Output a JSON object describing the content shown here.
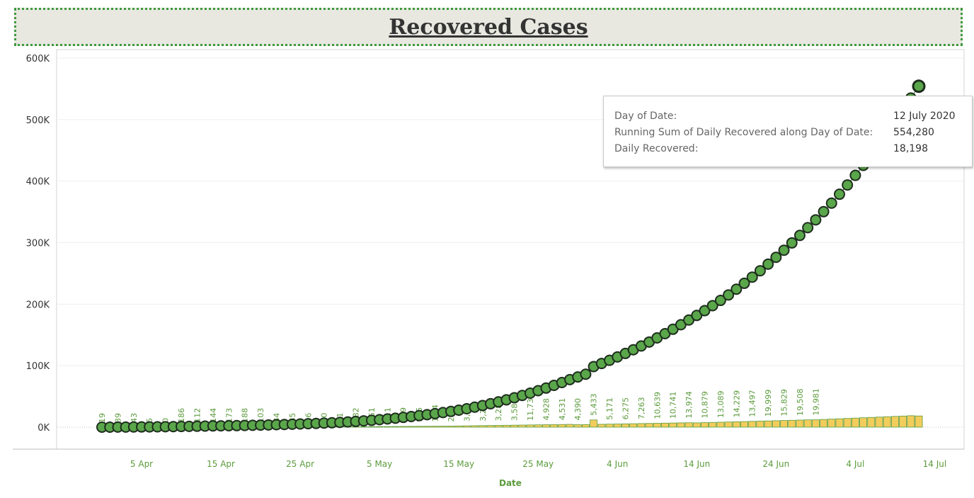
{
  "title": "Recovered Cases",
  "tooltip": {
    "rows": [
      {
        "label": "Day of Date:",
        "value": "12 July 2020"
      },
      {
        "label": "Running Sum of Daily Recovered along Day of Date:",
        "value": "554,280"
      },
      {
        "label": "Daily Recovered:",
        "value": "18,198"
      }
    ]
  },
  "chart_data": {
    "type": "bar+scatter",
    "xlabel": "Date",
    "ylabel": "",
    "ylim": [
      0,
      600000
    ],
    "y_ticks": [
      "0K",
      "100K",
      "200K",
      "300K",
      "400K",
      "500K",
      "600K"
    ],
    "x_ticks": [
      "5 Apr",
      "15 Apr",
      "25 Apr",
      "5 May",
      "15 May",
      "25 May",
      "4 Jun",
      "14 Jun",
      "24 Jun",
      "4 Jul",
      "14 Jul"
    ],
    "x_start_date": "2020-03-31",
    "x_end_date": "2020-07-12",
    "colors": {
      "marker": "#5aa64a",
      "marker_edge": "#1e2d1e",
      "bar": "#f2cd5c",
      "bar_edge": "#5b9b3c",
      "label": "#5b9b3c",
      "tick_label": "#5b9b3c"
    },
    "grid": true,
    "bar_labels": [
      "19",
      "39",
      "43",
      "5",
      "0",
      "186",
      "112",
      "144",
      "173",
      "188",
      "103",
      "84",
      "85",
      "36",
      "30",
      "31",
      "682",
      "661",
      "611",
      "659",
      "905",
      "1,94",
      "2,4",
      "3,1",
      "3,28",
      "3,285",
      "3,585",
      "11,735",
      "4,928",
      "4,531",
      "4,390",
      "5,433",
      "5,171",
      "6,275",
      "7,263",
      "10,639",
      "10,741",
      "13,974",
      "10,879",
      "13,089",
      "14,229",
      "13,497",
      "19,999",
      "15,829",
      "19,508",
      "19,981"
    ],
    "series": [
      {
        "name": "Running Sum of Daily Recovered",
        "values": []
      },
      {
        "name": "Daily Recovered",
        "values": []
      }
    ]
  }
}
